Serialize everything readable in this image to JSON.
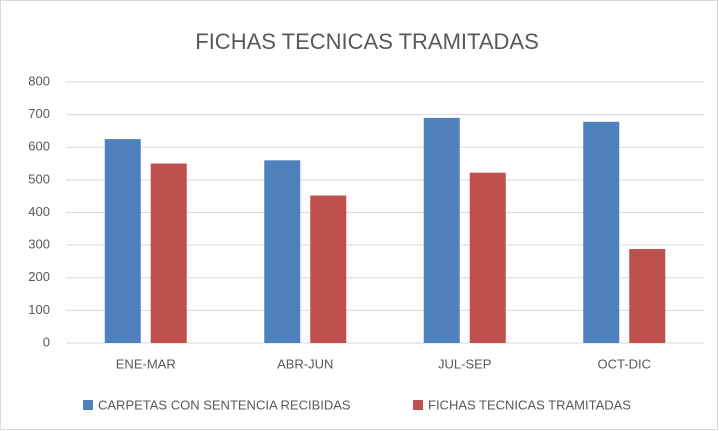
{
  "chart_data": {
    "type": "bar",
    "title": "FICHAS TECNICAS TRAMITADAS",
    "categories": [
      "ENE-MAR",
      "ABR-JUN",
      "JUL-SEP",
      "OCT-DIC"
    ],
    "series": [
      {
        "name": "CARPETAS CON SENTENCIA RECIBIDAS",
        "color": "#4f81bd",
        "values": [
          625,
          560,
          690,
          678
        ]
      },
      {
        "name": "FICHAS TECNICAS TRAMITADAS",
        "color": "#c0504d",
        "values": [
          550,
          452,
          522,
          288
        ]
      }
    ],
    "ylim": [
      0,
      800
    ],
    "yticks": [
      0,
      100,
      200,
      300,
      400,
      500,
      600,
      700,
      800
    ],
    "grid": true,
    "legend": "bottom"
  }
}
